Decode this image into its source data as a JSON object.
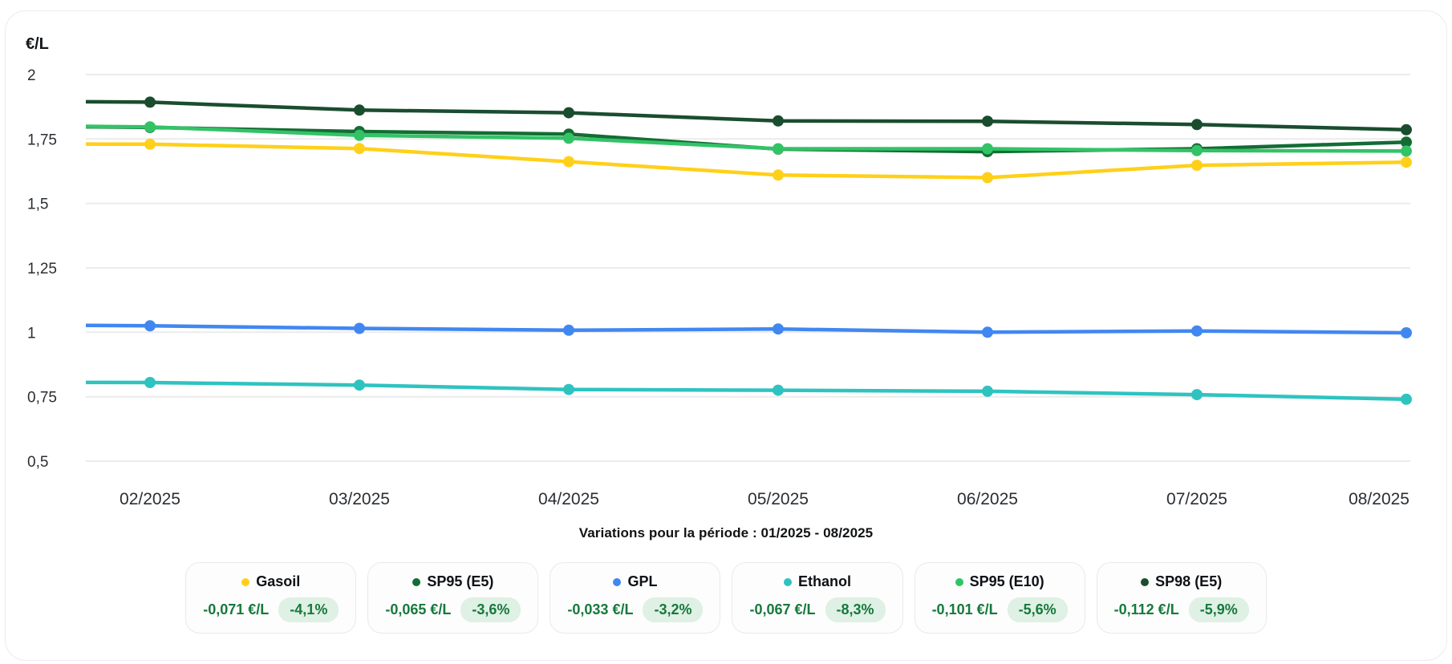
{
  "caption": "Variations pour la période : 01/2025 - 08/2025",
  "chart_data": {
    "type": "line",
    "title": "",
    "ylabel": "€/L",
    "xlabel": "",
    "x": [
      "01/2025",
      "02/2025",
      "03/2025",
      "04/2025",
      "05/2025",
      "06/2025",
      "07/2025",
      "08/2025"
    ],
    "x_visible_labels": [
      "02/2025",
      "03/2025",
      "04/2025",
      "05/2025",
      "06/2025",
      "07/2025",
      "08/2025"
    ],
    "ylim": [
      0.5,
      2.0
    ],
    "ytick_values": [
      2,
      1.75,
      1.5,
      1.25,
      1,
      0.75,
      0.5
    ],
    "ytick_labels": [
      "2",
      "1,75",
      "1,5",
      "1,25",
      "1",
      "0,75",
      "0,5"
    ],
    "grid": "horizontal",
    "legend_position": "bottom-cards",
    "series": [
      {
        "name": "Gasoil",
        "color": "#FFD019",
        "values": [
          1.731,
          1.73,
          1.713,
          1.662,
          1.61,
          1.6,
          1.648,
          1.66
        ]
      },
      {
        "name": "SP95 (E5)",
        "color": "#146C34",
        "values": [
          1.803,
          1.795,
          1.779,
          1.769,
          1.711,
          1.701,
          1.712,
          1.738
        ]
      },
      {
        "name": "GPL",
        "color": "#4187F1",
        "values": [
          1.031,
          1.025,
          1.015,
          1.008,
          1.013,
          1.0,
          1.005,
          0.998
        ]
      },
      {
        "name": "Ethanol",
        "color": "#2FC3C0",
        "values": [
          0.807,
          0.805,
          0.795,
          0.778,
          0.775,
          0.771,
          0.758,
          0.74
        ]
      },
      {
        "name": "SP95 (E10)",
        "color": "#33C367",
        "values": [
          1.804,
          1.797,
          1.764,
          1.753,
          1.712,
          1.712,
          1.705,
          1.703
        ]
      },
      {
        "name": "SP98 (E5)",
        "color": "#1A4D2E",
        "values": [
          1.898,
          1.893,
          1.862,
          1.852,
          1.82,
          1.819,
          1.806,
          1.786
        ]
      }
    ]
  },
  "legend_cards": [
    {
      "name": "Gasoil",
      "color": "#FFD019",
      "delta": "-0,071 €/L",
      "percent": "-4,1%"
    },
    {
      "name": "SP95 (E5)",
      "color": "#146C34",
      "delta": "-0,065 €/L",
      "percent": "-3,6%"
    },
    {
      "name": "GPL",
      "color": "#4187F1",
      "delta": "-0,033 €/L",
      "percent": "-3,2%"
    },
    {
      "name": "Ethanol",
      "color": "#2FC3C0",
      "delta": "-0,067 €/L",
      "percent": "-8,3%"
    },
    {
      "name": "SP95 (E10)",
      "color": "#33C367",
      "delta": "-0,101 €/L",
      "percent": "-5,6%"
    },
    {
      "name": "SP98 (E5)",
      "color": "#1A4D2E",
      "delta": "-0,112 €/L",
      "percent": "-5,9%"
    }
  ],
  "colors": {
    "grid": "#ECECEC",
    "axis_text": "#2A2E33",
    "value_green": "#16793C",
    "pill_bg": "#DFF0E4",
    "card_bg": "#FCFDFC",
    "card_border": "#E8EBE8",
    "panel_border": "#E9EBEE"
  }
}
